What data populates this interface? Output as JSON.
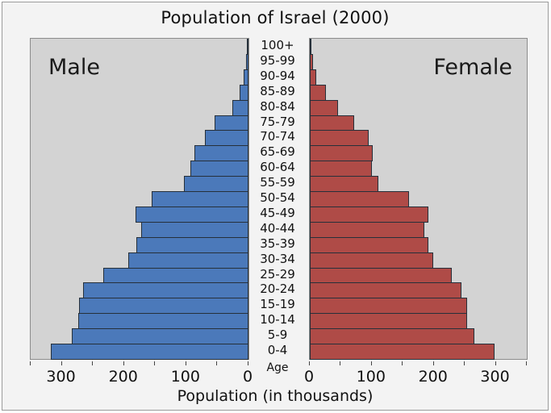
{
  "title": "Population of Israel (2000)",
  "left_panel_label": "Male",
  "right_panel_label": "Female",
  "center_axis_label": "Age",
  "xlabel": "Population (in thousands)",
  "colors": {
    "male_bar": "#4b79ba",
    "female_bar": "#af4b47",
    "bar_outline": "#26303a",
    "panel_background": "#d3d3d3",
    "figure_background": "#f3f3f3"
  },
  "chart_data": {
    "type": "bar",
    "subtype": "population-pyramid",
    "orientation": "horizontal",
    "title": "Population of Israel (2000)",
    "xlabel": "Population (in thousands)",
    "center_label": "Age",
    "age_groups": [
      "100+",
      "95-99",
      "90-94",
      "85-89",
      "80-84",
      "75-79",
      "70-74",
      "65-69",
      "60-64",
      "55-59",
      "50-54",
      "45-49",
      "40-44",
      "35-39",
      "30-34",
      "25-29",
      "20-24",
      "15-19",
      "10-14",
      "5-9",
      "0-4"
    ],
    "series": [
      {
        "name": "Male",
        "side": "left",
        "color": "#4b79ba",
        "values": [
          1,
          4,
          8,
          14,
          26,
          54,
          70,
          87,
          94,
          104,
          155,
          181,
          173,
          180,
          193,
          234,
          266,
          272,
          274,
          284,
          318
        ]
      },
      {
        "name": "Female",
        "side": "right",
        "color": "#af4b47",
        "values": [
          2,
          5,
          11,
          26,
          45,
          71,
          95,
          102,
          100,
          111,
          160,
          191,
          185,
          191,
          199,
          229,
          245,
          254,
          254,
          266,
          298
        ]
      }
    ],
    "x_axis": {
      "min": 0,
      "max": 350,
      "labeled_ticks": [
        0,
        100,
        200,
        300
      ],
      "minor_tick_step": 50,
      "left_panel_inverted": true
    },
    "legend_position": "none",
    "grid": false
  }
}
